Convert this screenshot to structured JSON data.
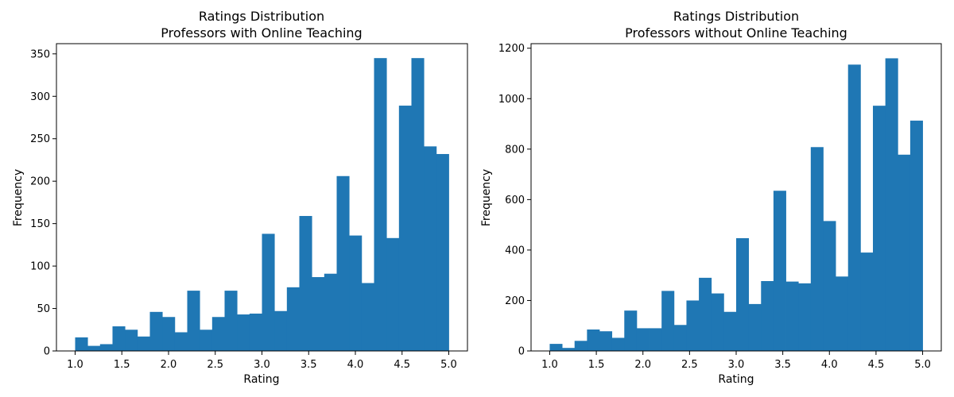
{
  "chart_data": [
    {
      "type": "bar",
      "title_line1": "Ratings Distribution",
      "title_line2": "Professors with Online Teaching",
      "xlabel": "Rating",
      "ylabel": "Frequency",
      "xlim": [
        0.8,
        5.2
      ],
      "ylim": [
        0,
        362
      ],
      "xticks": [
        1.0,
        1.5,
        2.0,
        2.5,
        3.0,
        3.5,
        4.0,
        4.5,
        5.0
      ],
      "xtick_labels": [
        "1.0",
        "1.5",
        "2.0",
        "2.5",
        "3.0",
        "3.5",
        "4.0",
        "4.5",
        "5.0"
      ],
      "yticks": [
        0,
        50,
        100,
        150,
        200,
        250,
        300,
        350
      ],
      "ytick_labels": [
        "0",
        "50",
        "100",
        "150",
        "200",
        "250",
        "300",
        "350"
      ],
      "bin_start": 1.0,
      "bin_end": 5.0,
      "bar_color": "#1f77b4",
      "values": [
        16,
        6,
        8,
        29,
        25,
        17,
        46,
        40,
        22,
        71,
        25,
        40,
        71,
        43,
        44,
        138,
        47,
        75,
        159,
        87,
        91,
        206,
        136,
        80,
        345,
        133,
        289,
        345,
        241,
        232
      ]
    },
    {
      "type": "bar",
      "title_line1": "Ratings Distribution",
      "title_line2": "Professors without Online Teaching",
      "xlabel": "Rating",
      "ylabel": "Frequency",
      "xlim": [
        0.8,
        5.2
      ],
      "ylim": [
        0,
        1218
      ],
      "xticks": [
        1.0,
        1.5,
        2.0,
        2.5,
        3.0,
        3.5,
        4.0,
        4.5,
        5.0
      ],
      "xtick_labels": [
        "1.0",
        "1.5",
        "2.0",
        "2.5",
        "3.0",
        "3.5",
        "4.0",
        "4.5",
        "5.0"
      ],
      "yticks": [
        0,
        200,
        400,
        600,
        800,
        1000,
        1200
      ],
      "ytick_labels": [
        "0",
        "200",
        "400",
        "600",
        "800",
        "1000",
        "1200"
      ],
      "bin_start": 1.0,
      "bin_end": 5.0,
      "bar_color": "#1f77b4",
      "values": [
        28,
        12,
        40,
        85,
        78,
        52,
        160,
        90,
        90,
        238,
        103,
        200,
        290,
        228,
        155,
        447,
        186,
        277,
        635,
        275,
        268,
        808,
        515,
        295,
        1135,
        390,
        972,
        1160,
        778,
        913
      ]
    }
  ]
}
